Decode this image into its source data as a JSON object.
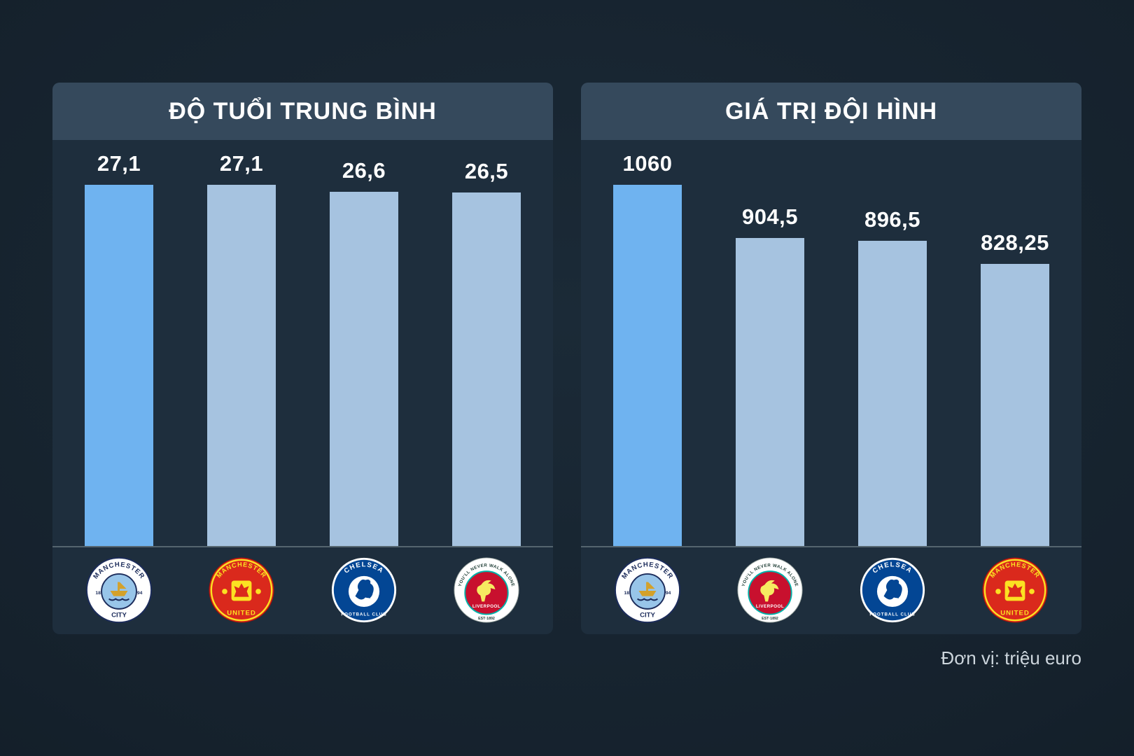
{
  "page": {
    "footnote": "Đơn vị: triệu euro"
  },
  "colors": {
    "background": "#15212c",
    "panel": "#1e2e3d",
    "header": "#35495c",
    "bar_highlight": "#6fb3f0",
    "bar_default": "#a6c3e0",
    "baseline": "#55656f",
    "text": "#ffffff",
    "footnote_text": "#cdd6dd"
  },
  "chart_data": [
    {
      "type": "bar",
      "title": "ĐỘ TUỔI TRUNG BÌNH",
      "categories": [
        "Manchester City",
        "Manchester United",
        "Chelsea",
        "Liverpool"
      ],
      "values": [
        27.1,
        27.1,
        26.6,
        26.5
      ],
      "value_labels": [
        "27,1",
        "27,1",
        "26,6",
        "26,5"
      ],
      "ylim": [
        0,
        27.1
      ],
      "highlight_index": 0,
      "legend_position": "none",
      "grid": false,
      "logos": [
        {
          "name": "man-city-crest",
          "ref": "#crest-man-city"
        },
        {
          "name": "man-united-crest",
          "ref": "#crest-man-united"
        },
        {
          "name": "chelsea-crest",
          "ref": "#crest-chelsea"
        },
        {
          "name": "liverpool-crest",
          "ref": "#crest-liverpool"
        }
      ]
    },
    {
      "type": "bar",
      "title": "GIÁ TRỊ ĐỘI HÌNH",
      "categories": [
        "Manchester City",
        "Liverpool",
        "Chelsea",
        "Manchester United"
      ],
      "values": [
        1060,
        904.5,
        896.5,
        828.25
      ],
      "value_labels": [
        "1060",
        "904,5",
        "896,5",
        "828,25"
      ],
      "ylim": [
        0,
        1060
      ],
      "highlight_index": 0,
      "unit": "triệu euro",
      "legend_position": "none",
      "grid": false,
      "logos": [
        {
          "name": "man-city-crest",
          "ref": "#crest-man-city"
        },
        {
          "name": "liverpool-crest",
          "ref": "#crest-liverpool"
        },
        {
          "name": "chelsea-crest",
          "ref": "#crest-chelsea"
        },
        {
          "name": "man-united-crest",
          "ref": "#crest-man-united"
        }
      ]
    }
  ]
}
